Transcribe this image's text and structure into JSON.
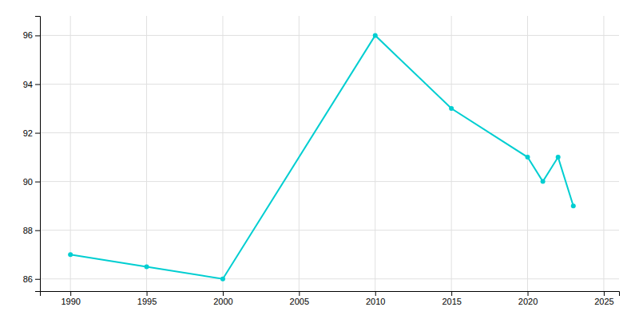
{
  "chart_data": {
    "type": "line",
    "x": [
      1990,
      1995,
      2000,
      2010,
      2015,
      2020,
      2021,
      2022,
      2023
    ],
    "values": [
      87,
      86.5,
      86,
      96,
      93,
      91,
      90,
      91,
      89
    ],
    "color": "#00CED1",
    "marker": "circle",
    "xlim": [
      1988,
      2026
    ],
    "ylim": [
      85.5,
      96.8
    ],
    "xticks": [
      1990,
      1995,
      2000,
      2005,
      2010,
      2015,
      2020,
      2025
    ],
    "yticks": [
      86,
      88,
      90,
      92,
      94,
      96
    ],
    "grid": true
  }
}
